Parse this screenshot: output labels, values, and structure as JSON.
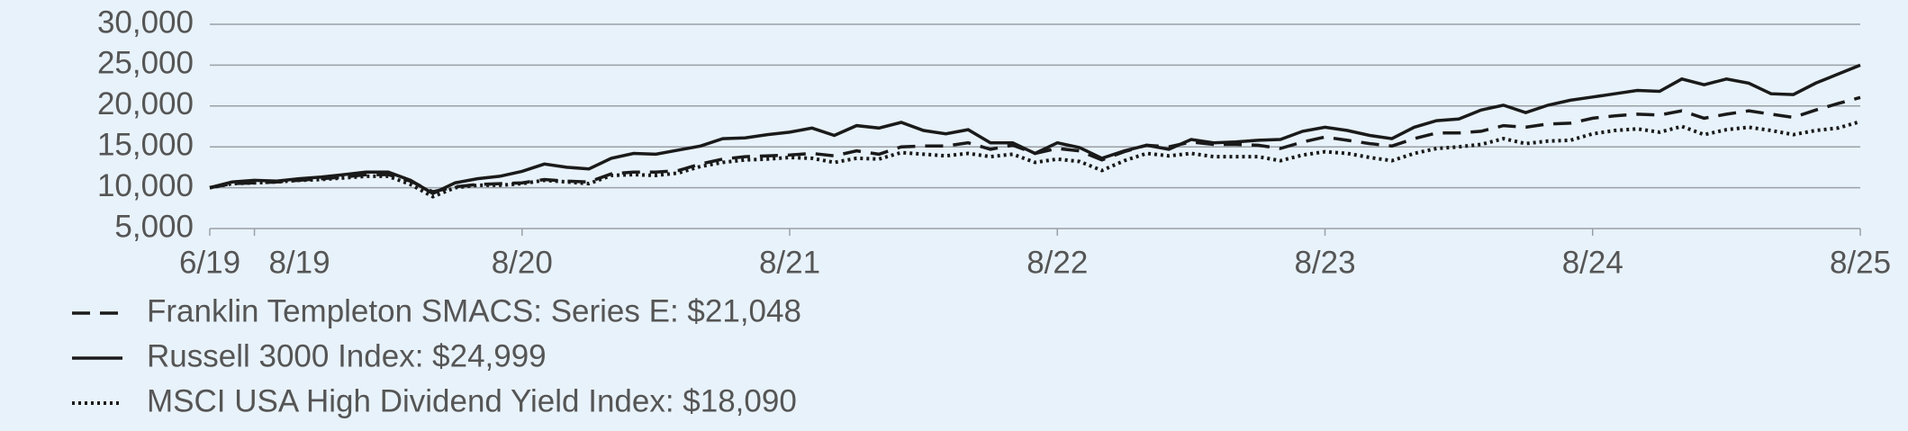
{
  "chart_data": {
    "type": "line",
    "categories": [
      "6/19",
      null,
      "8/19",
      null,
      null,
      null,
      null,
      null,
      null,
      null,
      null,
      null,
      null,
      null,
      "8/20",
      null,
      null,
      null,
      null,
      null,
      null,
      null,
      null,
      null,
      null,
      null,
      "8/21",
      null,
      null,
      null,
      null,
      null,
      null,
      null,
      null,
      null,
      null,
      null,
      "8/22",
      null,
      null,
      null,
      null,
      null,
      null,
      null,
      null,
      null,
      null,
      null,
      "8/23",
      null,
      null,
      null,
      null,
      null,
      null,
      null,
      null,
      null,
      null,
      null,
      "8/24",
      null,
      null,
      null,
      null,
      null,
      null,
      null,
      null,
      null,
      null,
      null,
      "8/25"
    ],
    "series": [
      {
        "name": "Franklin Templeton SMACS: Series E: $21,048",
        "color": "#1a1a1a",
        "style": "dashed",
        "values": [
          10000,
          10500,
          10600,
          10700,
          10900,
          11100,
          11300,
          11600,
          11600,
          10800,
          9500,
          10100,
          10400,
          10500,
          10600,
          11000,
          10800,
          10700,
          11700,
          11900,
          11900,
          12100,
          12900,
          13500,
          13800,
          13900,
          14000,
          14200,
          13900,
          14500,
          14100,
          15000,
          15100,
          15100,
          15500,
          14700,
          15200,
          14200,
          14800,
          14500,
          13400,
          14400,
          15200,
          15000,
          15600,
          15300,
          15300,
          15200,
          14800,
          15600,
          16200,
          15800,
          15400,
          15100,
          16000,
          16700,
          16700,
          16900,
          17600,
          17400,
          17800,
          17900,
          18500,
          18800,
          19000,
          18900,
          19400,
          18500,
          19000,
          19400,
          19000,
          18600,
          19500,
          20300,
          21048
        ]
      },
      {
        "name": "Russell 3000 Index: $24,999",
        "color": "#1a1a1a",
        "style": "solid",
        "values": [
          10000,
          10700,
          10900,
          10800,
          11100,
          11300,
          11600,
          11900,
          11900,
          10900,
          9300,
          10600,
          11100,
          11400,
          12000,
          12900,
          12500,
          12300,
          13600,
          14200,
          14100,
          14600,
          15100,
          16000,
          16100,
          16500,
          16800,
          17300,
          16400,
          17600,
          17300,
          18000,
          17000,
          16600,
          17100,
          15500,
          15500,
          14200,
          15500,
          14900,
          13600,
          14500,
          15200,
          14700,
          15900,
          15500,
          15600,
          15800,
          15900,
          16900,
          17400,
          17000,
          16400,
          16000,
          17400,
          18200,
          18400,
          19500,
          20100,
          19200,
          20100,
          20700,
          21100,
          21500,
          21900,
          21800,
          23300,
          22600,
          23300,
          22800,
          21500,
          21400,
          22800,
          23900,
          24999
        ]
      },
      {
        "name": "MSCI USA High Dividend Yield Index: $18,090",
        "color": "#1a1a1a",
        "style": "dotted",
        "values": [
          10000,
          10500,
          10600,
          10700,
          10900,
          11000,
          11200,
          11400,
          11400,
          10400,
          8900,
          10000,
          10300,
          10300,
          10500,
          10900,
          10700,
          10500,
          11500,
          11600,
          11500,
          11800,
          12600,
          13100,
          13400,
          13500,
          13700,
          13600,
          13100,
          13600,
          13500,
          14300,
          14100,
          13900,
          14200,
          13800,
          14100,
          13100,
          13500,
          13200,
          12100,
          13300,
          14200,
          13900,
          14200,
          13800,
          13800,
          13800,
          13300,
          14000,
          14400,
          14200,
          13700,
          13300,
          14200,
          14800,
          15000,
          15300,
          16000,
          15400,
          15700,
          15800,
          16600,
          17000,
          17200,
          16800,
          17500,
          16500,
          17100,
          17400,
          17000,
          16500,
          17000,
          17300,
          18090
        ]
      }
    ],
    "ylim": [
      5000,
      30000
    ],
    "yticks": [
      {
        "value": 5000,
        "label": "5,000"
      },
      {
        "value": 10000,
        "label": "10,000"
      },
      {
        "value": 15000,
        "label": "15,000"
      },
      {
        "value": 20000,
        "label": "20,000"
      },
      {
        "value": 25000,
        "label": "25,000"
      },
      {
        "value": 30000,
        "label": "30,000"
      }
    ],
    "grid": true
  }
}
